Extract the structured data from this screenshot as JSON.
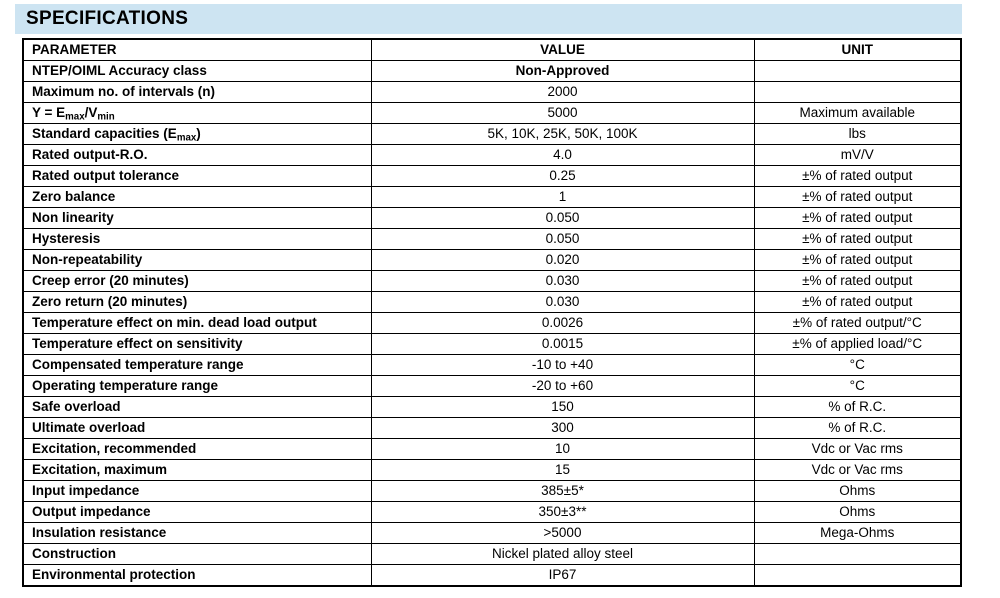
{
  "title": "SPECIFICATIONS",
  "colors": {
    "title_bar_bg": "#cde4f2",
    "border": "#000000",
    "text": "#000000"
  },
  "table": {
    "headers": [
      "PARAMETER",
      "VALUE",
      "UNIT"
    ],
    "rows": [
      {
        "parameter": "NTEP/OIML Accuracy class",
        "value": "Non-Approved",
        "unit": "",
        "value_bold": true
      },
      {
        "parameter": "Maximum no. of intervals (n)",
        "value": "2000",
        "unit": "",
        "value_bold": false
      },
      {
        "parameter": "Y = E~max~/V~min~",
        "value": "5000",
        "unit": "Maximum available",
        "value_bold": false
      },
      {
        "parameter": "Standard capacities (E~max~)",
        "value": "5K, 10K, 25K, 50K, 100K",
        "unit": "lbs",
        "value_bold": false
      },
      {
        "parameter": "Rated output-R.O.",
        "value": "4.0",
        "unit": "mV/V",
        "value_bold": false
      },
      {
        "parameter": "Rated output tolerance",
        "value": "0.25",
        "unit": "±% of rated output",
        "value_bold": false
      },
      {
        "parameter": "Zero balance",
        "value": "1",
        "unit": "±% of rated output",
        "value_bold": false
      },
      {
        "parameter": "Non linearity",
        "value": "0.050",
        "unit": "±% of rated output",
        "value_bold": false
      },
      {
        "parameter": "Hysteresis",
        "value": "0.050",
        "unit": "±% of rated output",
        "value_bold": false
      },
      {
        "parameter": "Non-repeatability",
        "value": "0.020",
        "unit": "±% of rated output",
        "value_bold": false
      },
      {
        "parameter": "Creep error (20 minutes)",
        "value": "0.030",
        "unit": "±% of rated output",
        "value_bold": false
      },
      {
        "parameter": "Zero return (20 minutes)",
        "value": "0.030",
        "unit": "±% of rated output",
        "value_bold": false
      },
      {
        "parameter": "Temperature effect on min. dead load output",
        "value": "0.0026",
        "unit": "±% of rated output/°C",
        "value_bold": false
      },
      {
        "parameter": "Temperature effect on sensitivity",
        "value": "0.0015",
        "unit": "±% of applied load/°C",
        "value_bold": false
      },
      {
        "parameter": "Compensated temperature range",
        "value": "-10 to +40",
        "unit": "°C",
        "value_bold": false
      },
      {
        "parameter": "Operating temperature range",
        "value": "-20 to +60",
        "unit": "°C",
        "value_bold": false
      },
      {
        "parameter": "Safe overload",
        "value": "150",
        "unit": "% of R.C.",
        "value_bold": false
      },
      {
        "parameter": "Ultimate overload",
        "value": "300",
        "unit": "% of R.C.",
        "value_bold": false
      },
      {
        "parameter": "Excitation, recommended",
        "value": "10",
        "unit": "Vdc or Vac rms",
        "value_bold": false
      },
      {
        "parameter": "Excitation, maximum",
        "value": "15",
        "unit": "Vdc or Vac rms",
        "value_bold": false
      },
      {
        "parameter": "Input impedance",
        "value": "385±5*",
        "unit": "Ohms",
        "value_bold": false
      },
      {
        "parameter": "Output impedance",
        "value": "350±3**",
        "unit": "Ohms",
        "value_bold": false
      },
      {
        "parameter": "Insulation resistance",
        "value": ">5000",
        "unit": "Mega-Ohms",
        "value_bold": false
      },
      {
        "parameter": "Construction",
        "value": "Nickel plated alloy steel",
        "unit": "",
        "value_bold": false
      },
      {
        "parameter": "Environmental protection",
        "value": "IP67",
        "unit": "",
        "value_bold": false
      }
    ]
  }
}
